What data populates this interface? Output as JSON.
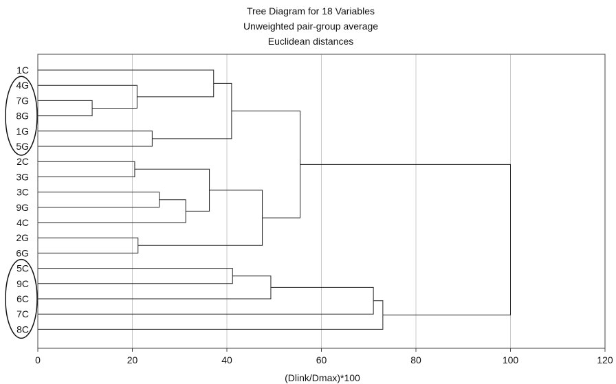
{
  "chart_data": {
    "type": "dendrogram",
    "title": "Tree Diagram for 18  Variables",
    "subtitle_lines": [
      "Unweighted pair-group average",
      "Euclidean distances"
    ],
    "xlabel": "(Dlink/Dmax)*100",
    "xlim": [
      0,
      120
    ],
    "x_ticks": [
      0,
      20,
      40,
      60,
      80,
      100,
      120
    ],
    "grid": {
      "vertical": true,
      "color": "#c8c8c8"
    },
    "leaves": [
      "1C",
      "4G",
      "7G",
      "8G",
      "1G",
      "5G",
      "2C",
      "3G",
      "3C",
      "9G",
      "4C",
      "2G",
      "6G",
      "5C",
      "9C",
      "6C",
      "7C",
      "8C"
    ],
    "merges": [
      {
        "id": "m1",
        "a": "7G",
        "b": "8G",
        "height": 11.5
      },
      {
        "id": "m2",
        "a": "2C",
        "b": "3G",
        "height": 20.5
      },
      {
        "id": "m3",
        "a": "4G",
        "b": "m1",
        "height": 21
      },
      {
        "id": "m4",
        "a": "2G",
        "b": "6G",
        "height": 21.2
      },
      {
        "id": "m5",
        "a": "1G",
        "b": "5G",
        "height": 24.2
      },
      {
        "id": "m6",
        "a": "3C",
        "b": "9G",
        "height": 25.7
      },
      {
        "id": "m7",
        "a": "m6",
        "b": "4C",
        "height": 31.3
      },
      {
        "id": "m8",
        "a": "m2",
        "b": "m7",
        "height": 36.3
      },
      {
        "id": "m9",
        "a": "1C",
        "b": "m3",
        "height": 37.2
      },
      {
        "id": "m10",
        "a": "m9",
        "b": "m5",
        "height": 41
      },
      {
        "id": "m11",
        "a": "5C",
        "b": "9C",
        "height": 41.2
      },
      {
        "id": "m12",
        "a": "m8",
        "b": "m4",
        "height": 47.5
      },
      {
        "id": "m13",
        "a": "m11",
        "b": "6C",
        "height": 49.3
      },
      {
        "id": "m14",
        "a": "m10",
        "b": "m12",
        "height": 55.5
      },
      {
        "id": "m15",
        "a": "m13",
        "b": "7C",
        "height": 71
      },
      {
        "id": "m16",
        "a": "m15",
        "b": "8C",
        "height": 73
      },
      {
        "id": "m17",
        "a": "m14",
        "b": "m16",
        "height": 100
      }
    ],
    "highlight_groups": [
      [
        "4G",
        "7G",
        "8G",
        "1G",
        "5G"
      ],
      [
        "5C",
        "9C",
        "6C",
        "7C",
        "8C"
      ]
    ]
  }
}
